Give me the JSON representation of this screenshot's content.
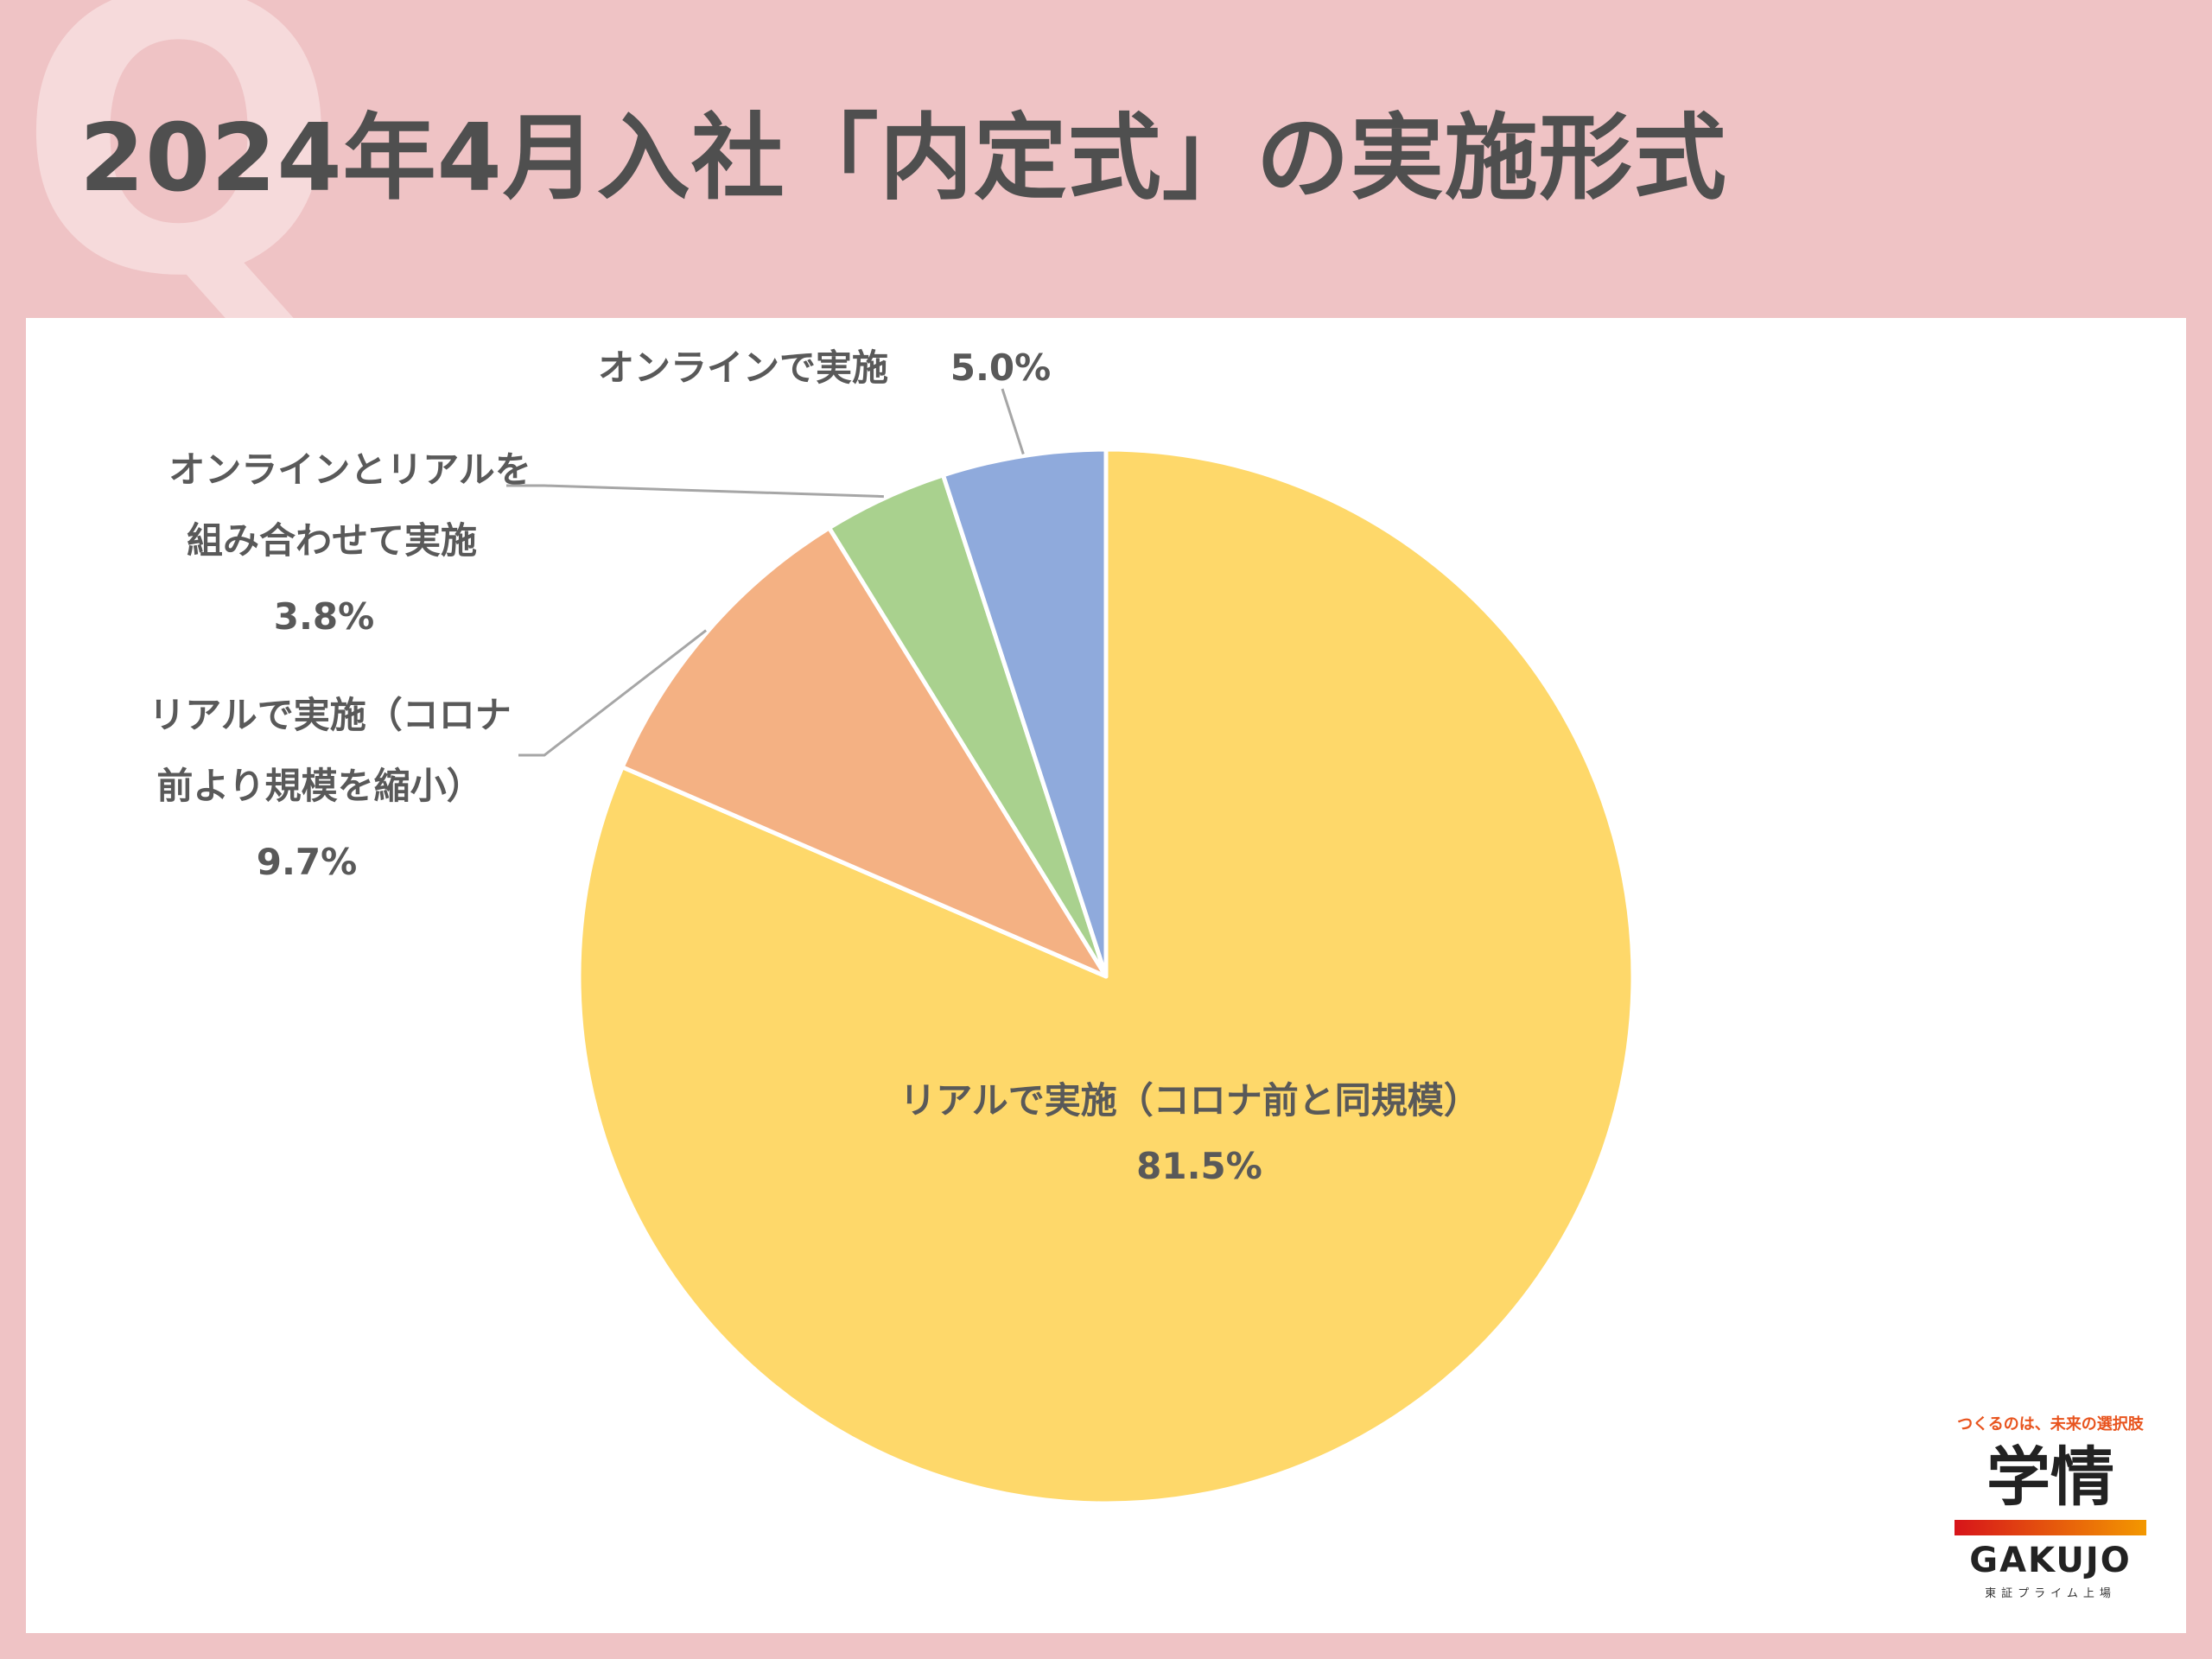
{
  "page": {
    "title": "2024年4月入社「内定式」の実施形式",
    "q_letter": "Q"
  },
  "chart_data": {
    "type": "pie",
    "title": "2024年4月入社「内定式」の実施形式",
    "start": "12 o'clock, clockwise",
    "slices": [
      {
        "label_lines": [
          "リアルで実施（コロナ前と同規模）"
        ],
        "value": 81.5,
        "value_label": "81.5%",
        "color": "#fed86a"
      },
      {
        "label_lines": [
          "リアルで実施（コロナ",
          "前より規模を縮小）"
        ],
        "value": 9.7,
        "value_label": "9.7%",
        "color": "#f4b183"
      },
      {
        "label_lines": [
          "オンラインとリアルを",
          "組み合わせて実施"
        ],
        "value": 3.8,
        "value_label": "3.8%",
        "color": "#a9d18e"
      },
      {
        "label_lines": [
          "オンラインで実施"
        ],
        "value": 5.0,
        "value_label": "5.0%",
        "color": "#8faadc"
      }
    ]
  },
  "brand": {
    "tagline": "つくるのは、未来の選択肢",
    "name_kanji": "学情",
    "name_latin": "GAKUJO",
    "subtitle": "東証プライム上場"
  }
}
